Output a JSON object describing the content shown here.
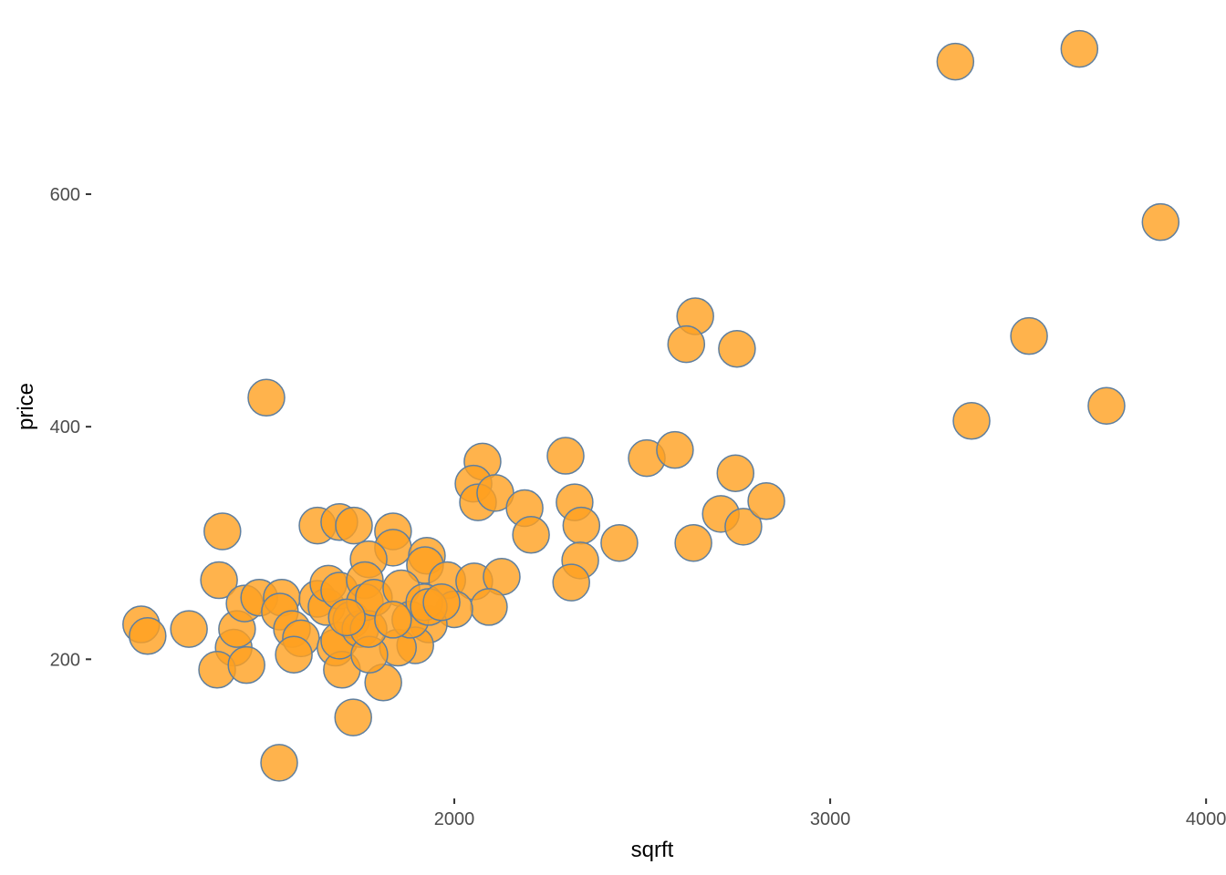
{
  "chart_data": {
    "type": "scatter",
    "x_label": "sqrft",
    "y_label": "price",
    "color": "#ffa01f",
    "edge_color": "#5f7f9f",
    "grid": false,
    "x": [
      3333,
      3663,
      3879,
      2641,
      2617,
      2752,
      3529,
      3735,
      3376,
      1500,
      2296,
      2512,
      2587,
      2075,
      2051,
      2063,
      2109,
      2187,
      2204,
      2320,
      2338,
      2335,
      2311,
      2439,
      2636,
      2709,
      2748,
      2769,
      2830,
      1383,
      1374,
      1636,
      1694,
      1733,
      1837,
      1837,
      1772,
      1927,
      1922,
      1981,
      2053,
      2126,
      2092,
      2000,
      1932,
      1896,
      1850,
      1811,
      1731,
      1534,
      1167,
      1184,
      1294,
      1413,
      1422,
      1369,
      1447,
      1442,
      1481,
      1541,
      1536,
      1568,
      1592,
      1573,
      1636,
      1660,
      1665,
      1694,
      1684,
      1701,
      1694,
      1726,
      1750,
      1762,
      1762,
      1774,
      1772,
      1786,
      1859,
      1883,
      1920,
      1932,
      1966,
      1714,
      1837
    ],
    "y": [
      714,
      725,
      576,
      495,
      471,
      467,
      478,
      418,
      405,
      425,
      375,
      373,
      380,
      370,
      351,
      335,
      343,
      330,
      307,
      335,
      315,
      285,
      266,
      300,
      300,
      325,
      360,
      314,
      336,
      310,
      268,
      315,
      318,
      315,
      310,
      296,
      286,
      289,
      281,
      268,
      267,
      271,
      245,
      243,
      230,
      212,
      210,
      180,
      150,
      111,
      230,
      220,
      226,
      210,
      226,
      191,
      195,
      248,
      253,
      253,
      241,
      226,
      218,
      204,
      252,
      245,
      265,
      259,
      210,
      191,
      216,
      234,
      226,
      268,
      249,
      204,
      226,
      253,
      261,
      234,
      249,
      245,
      249,
      236,
      234
    ],
    "xlim": [
      1034,
      4053
    ],
    "ylim": [
      85,
      767
    ],
    "xticks": [
      2000,
      3000,
      4000
    ],
    "yticks": [
      200,
      400,
      600
    ]
  }
}
